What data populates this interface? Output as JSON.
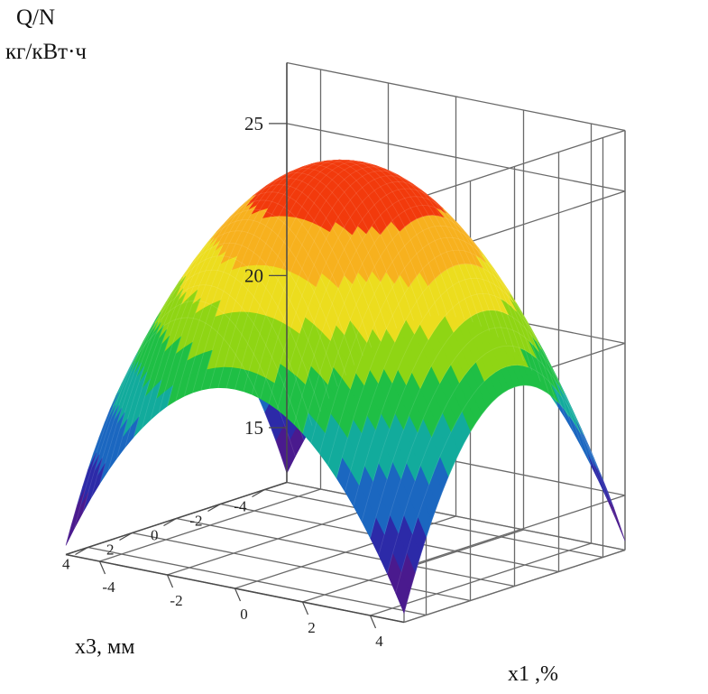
{
  "chart_data": {
    "type": "surface3d",
    "zlabel": "Q/N",
    "zunit": "кг/кВт·ч",
    "xlabel": "x1 ,%",
    "ylabel": "x3, мм",
    "x_ticks": [
      "-4",
      "-2",
      "0",
      "2",
      "4"
    ],
    "y_ticks": [
      "4",
      "2",
      "0",
      "-2",
      "-4"
    ],
    "z_ticks": [
      "15",
      "20",
      "25"
    ],
    "x_range": [
      -5,
      5
    ],
    "y_range": [
      -5,
      5
    ],
    "z_range": [
      13.2,
      27
    ],
    "z_max": 26,
    "z_corner": 13.5,
    "grid": true,
    "colormap": [
      "#4a1a8e",
      "#2c2aa8",
      "#1b67c0",
      "#12ab9c",
      "#1fbf45",
      "#8fd514",
      "#ecdd1e",
      "#f7b11e",
      "#f23a0c"
    ]
  }
}
